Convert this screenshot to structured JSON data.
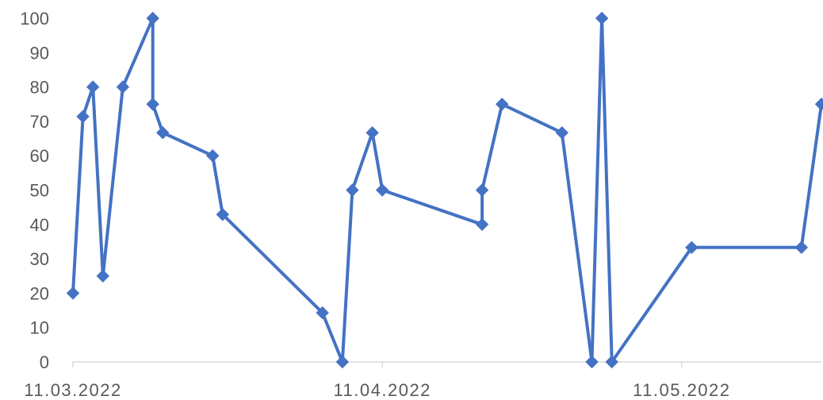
{
  "chart_data": {
    "type": "line",
    "title": "",
    "xlabel": "",
    "ylabel": "",
    "ylim": [
      0,
      100
    ],
    "yticks": [
      0,
      10,
      20,
      30,
      40,
      50,
      60,
      70,
      80,
      90,
      100
    ],
    "xlim": [
      "2022-03-11",
      "2022-05-25"
    ],
    "xticks": [
      {
        "date": "2022-03-11",
        "label": "11.03.2022"
      },
      {
        "date": "2022-04-11",
        "label": "11.04.2022"
      },
      {
        "date": "2022-05-11",
        "label": "11.05.2022"
      }
    ],
    "grid": false,
    "legend": "none",
    "series": [
      {
        "color": "#4472c4",
        "marker": "diamond",
        "points": [
          {
            "x": "2022-03-11",
            "y": 20
          },
          {
            "x": "2022-03-12",
            "y": 71.4
          },
          {
            "x": "2022-03-13",
            "y": 80
          },
          {
            "x": "2022-03-14",
            "y": 25
          },
          {
            "x": "2022-03-16",
            "y": 80
          },
          {
            "x": "2022-03-19",
            "y": 100
          },
          {
            "x": "2022-03-19",
            "y": 75
          },
          {
            "x": "2022-03-20",
            "y": 66.7
          },
          {
            "x": "2022-03-25",
            "y": 60
          },
          {
            "x": "2022-03-26",
            "y": 42.9
          },
          {
            "x": "2022-04-05",
            "y": 14.3
          },
          {
            "x": "2022-04-07",
            "y": 0
          },
          {
            "x": "2022-04-08",
            "y": 50
          },
          {
            "x": "2022-04-10",
            "y": 66.7
          },
          {
            "x": "2022-04-11",
            "y": 50
          },
          {
            "x": "2022-04-21",
            "y": 40
          },
          {
            "x": "2022-04-21",
            "y": 50
          },
          {
            "x": "2022-04-23",
            "y": 75
          },
          {
            "x": "2022-04-29",
            "y": 66.7
          },
          {
            "x": "2022-05-02",
            "y": 0
          },
          {
            "x": "2022-05-03",
            "y": 100
          },
          {
            "x": "2022-05-04",
            "y": 0
          },
          {
            "x": "2022-05-12",
            "y": 33.3
          },
          {
            "x": "2022-05-23",
            "y": 33.3
          },
          {
            "x": "2022-05-25",
            "y": 75
          }
        ]
      }
    ]
  }
}
